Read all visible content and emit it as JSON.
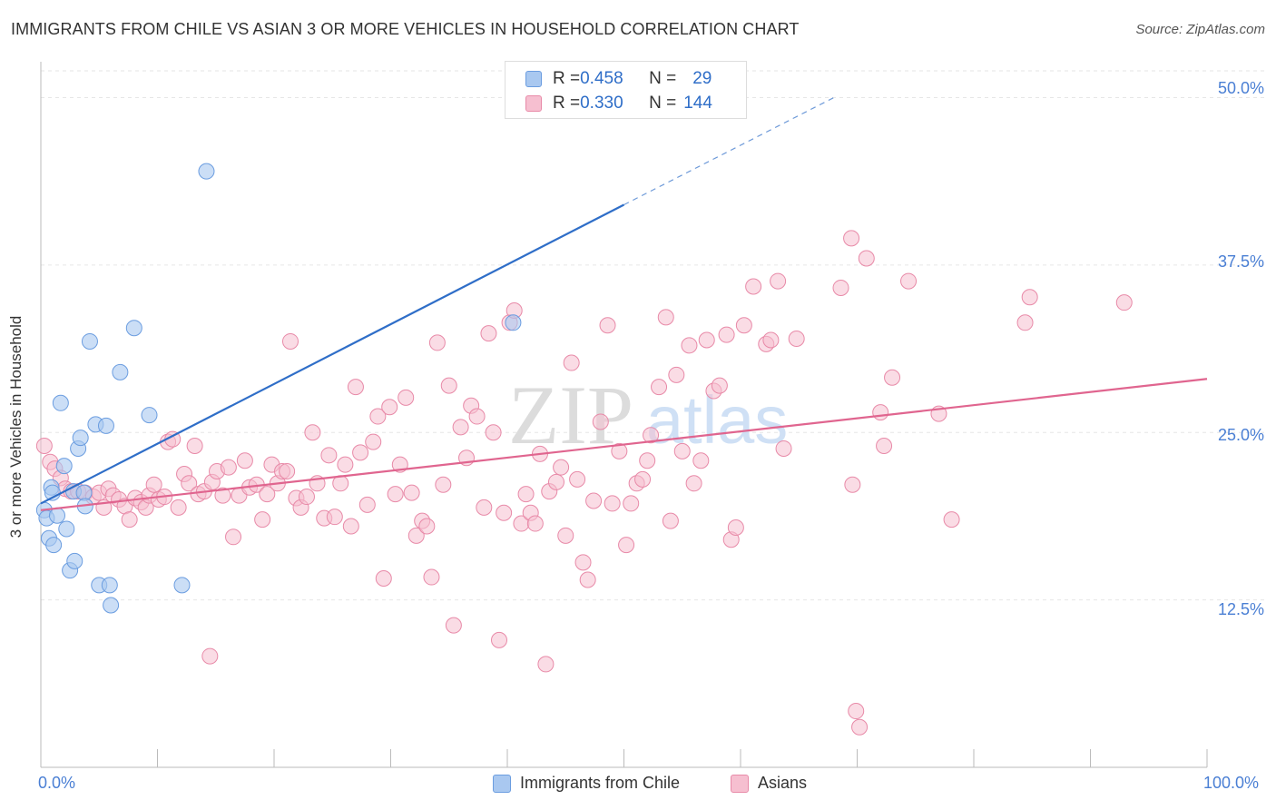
{
  "title": "IMMIGRANTS FROM CHILE VS ASIAN 3 OR MORE VEHICLES IN HOUSEHOLD CORRELATION CHART",
  "source": "Source: ZipAtlas.com",
  "colors": {
    "blue_fill": "#a9c8f0",
    "blue_stroke": "#6b9de0",
    "blue_line": "#2f6ec8",
    "pink_fill": "#f6bfd0",
    "pink_stroke": "#e88aa8",
    "pink_line": "#e0658f",
    "tick_text": "#4a7fd4",
    "grid": "#e6e6e6"
  },
  "legend": {
    "rows": [
      {
        "r_label": "R = ",
        "r_value": "0.458",
        "n_label": "N = ",
        "n_value": "29"
      },
      {
        "r_label": "R = ",
        "r_value": "0.330",
        "n_label": "N = ",
        "n_value": "144"
      }
    ]
  },
  "watermark": {
    "zip": "ZIP",
    "atlas": "atlas"
  },
  "chart_data": {
    "type": "scatter",
    "title": "IMMIGRANTS FROM CHILE VS ASIAN 3 OR MORE VEHICLES IN HOUSEHOLD CORRELATION CHART",
    "xlabel": "",
    "ylabel": "3 or more Vehicles in Household",
    "xlim": [
      0,
      100
    ],
    "ylim": [
      0,
      52
    ],
    "x_tick_labels": [
      "0.0%",
      "100.0%"
    ],
    "y_ticks": [
      12.5,
      25.0,
      37.5,
      50.0
    ],
    "y_tick_labels": [
      "12.5%",
      "25.0%",
      "37.5%",
      "50.0%"
    ],
    "grid": true,
    "series": [
      {
        "name": "Immigrants from Chile",
        "color": "#a9c8f0",
        "r": 0.458,
        "n": 29,
        "trend": {
          "x0": 0,
          "y0": 19.7,
          "x1": 50,
          "y1": 42.0,
          "dash_to_x": 68,
          "dash_to_y": 50.0
        },
        "points": [
          [
            0.3,
            19.2
          ],
          [
            0.5,
            18.6
          ],
          [
            0.7,
            17.1
          ],
          [
            0.9,
            20.9
          ],
          [
            1.1,
            16.6
          ],
          [
            1.4,
            18.8
          ],
          [
            1.7,
            27.2
          ],
          [
            2.0,
            22.5
          ],
          [
            2.2,
            17.8
          ],
          [
            2.5,
            14.7
          ],
          [
            2.8,
            20.6
          ],
          [
            2.9,
            15.4
          ],
          [
            3.2,
            23.8
          ],
          [
            3.4,
            24.6
          ],
          [
            3.7,
            20.5
          ],
          [
            3.8,
            19.5
          ],
          [
            4.2,
            31.8
          ],
          [
            4.7,
            25.6
          ],
          [
            5.0,
            13.6
          ],
          [
            5.6,
            25.5
          ],
          [
            5.9,
            13.6
          ],
          [
            6.0,
            12.1
          ],
          [
            6.8,
            29.5
          ],
          [
            8.0,
            32.8
          ],
          [
            9.3,
            26.3
          ],
          [
            12.1,
            13.6
          ],
          [
            14.2,
            44.5
          ],
          [
            40.5,
            33.2
          ],
          [
            1.0,
            20.5
          ]
        ]
      },
      {
        "name": "Asians",
        "color": "#f6bfd0",
        "r": 0.33,
        "n": 144,
        "trend": {
          "x0": 0,
          "y0": 19.2,
          "x1": 100,
          "y1": 29.0
        },
        "points": [
          [
            0.3,
            24.0
          ],
          [
            0.8,
            22.8
          ],
          [
            1.2,
            22.3
          ],
          [
            1.7,
            21.6
          ],
          [
            2.1,
            20.8
          ],
          [
            2.6,
            20.6
          ],
          [
            3.2,
            20.6
          ],
          [
            3.8,
            20.5
          ],
          [
            4.5,
            20.2
          ],
          [
            5.0,
            20.5
          ],
          [
            5.4,
            19.4
          ],
          [
            5.8,
            20.8
          ],
          [
            6.2,
            20.3
          ],
          [
            6.7,
            20.0
          ],
          [
            7.2,
            19.5
          ],
          [
            7.6,
            18.5
          ],
          [
            8.1,
            20.1
          ],
          [
            8.6,
            19.8
          ],
          [
            9.0,
            19.4
          ],
          [
            9.3,
            20.3
          ],
          [
            9.7,
            21.1
          ],
          [
            10.1,
            20.0
          ],
          [
            10.6,
            20.2
          ],
          [
            10.9,
            24.3
          ],
          [
            11.3,
            24.5
          ],
          [
            11.8,
            19.4
          ],
          [
            12.3,
            21.9
          ],
          [
            12.7,
            21.2
          ],
          [
            13.2,
            24.0
          ],
          [
            13.5,
            20.4
          ],
          [
            14.0,
            20.6
          ],
          [
            14.5,
            8.3
          ],
          [
            14.7,
            21.3
          ],
          [
            15.1,
            22.1
          ],
          [
            15.6,
            20.3
          ],
          [
            16.1,
            22.4
          ],
          [
            16.5,
            17.2
          ],
          [
            17.0,
            20.3
          ],
          [
            17.5,
            22.9
          ],
          [
            17.9,
            20.9
          ],
          [
            18.5,
            21.1
          ],
          [
            19.0,
            18.5
          ],
          [
            19.4,
            20.4
          ],
          [
            19.8,
            22.6
          ],
          [
            20.3,
            21.2
          ],
          [
            20.7,
            22.1
          ],
          [
            21.1,
            22.1
          ],
          [
            21.4,
            31.8
          ],
          [
            21.9,
            20.1
          ],
          [
            22.3,
            19.4
          ],
          [
            22.8,
            20.2
          ],
          [
            23.3,
            25.0
          ],
          [
            23.7,
            21.2
          ],
          [
            24.3,
            18.6
          ],
          [
            24.7,
            23.3
          ],
          [
            25.2,
            18.7
          ],
          [
            25.7,
            21.2
          ],
          [
            26.1,
            22.6
          ],
          [
            26.6,
            18.0
          ],
          [
            27.0,
            28.4
          ],
          [
            27.4,
            23.5
          ],
          [
            28.0,
            19.6
          ],
          [
            28.5,
            24.3
          ],
          [
            28.9,
            26.2
          ],
          [
            29.4,
            14.1
          ],
          [
            29.9,
            26.9
          ],
          [
            30.4,
            20.4
          ],
          [
            30.8,
            22.6
          ],
          [
            31.3,
            27.6
          ],
          [
            31.8,
            20.5
          ],
          [
            32.2,
            17.3
          ],
          [
            32.7,
            18.4
          ],
          [
            33.1,
            18.0
          ],
          [
            33.5,
            14.2
          ],
          [
            34.0,
            31.7
          ],
          [
            34.5,
            21.1
          ],
          [
            35.0,
            28.5
          ],
          [
            35.4,
            10.6
          ],
          [
            36.0,
            25.4
          ],
          [
            36.5,
            23.1
          ],
          [
            36.9,
            27.0
          ],
          [
            37.4,
            26.2
          ],
          [
            38.0,
            19.4
          ],
          [
            38.4,
            32.4
          ],
          [
            38.8,
            25.0
          ],
          [
            39.3,
            9.5
          ],
          [
            39.7,
            19.0
          ],
          [
            40.2,
            33.2
          ],
          [
            40.6,
            34.1
          ],
          [
            41.2,
            18.2
          ],
          [
            41.6,
            20.4
          ],
          [
            42.0,
            19.0
          ],
          [
            42.4,
            18.2
          ],
          [
            42.8,
            23.4
          ],
          [
            43.3,
            7.7
          ],
          [
            43.6,
            20.6
          ],
          [
            44.2,
            21.3
          ],
          [
            44.6,
            22.4
          ],
          [
            45.0,
            17.3
          ],
          [
            45.5,
            30.2
          ],
          [
            46.0,
            21.5
          ],
          [
            46.5,
            15.3
          ],
          [
            46.9,
            14.0
          ],
          [
            47.4,
            19.9
          ],
          [
            48.0,
            25.8
          ],
          [
            48.6,
            33.0
          ],
          [
            49.0,
            19.7
          ],
          [
            49.6,
            23.6
          ],
          [
            50.2,
            16.6
          ],
          [
            50.6,
            19.7
          ],
          [
            51.1,
            21.2
          ],
          [
            51.6,
            21.5
          ],
          [
            52.0,
            22.9
          ],
          [
            52.3,
            24.8
          ],
          [
            53.0,
            28.4
          ],
          [
            53.6,
            33.6
          ],
          [
            54.0,
            18.4
          ],
          [
            54.5,
            29.3
          ],
          [
            55.0,
            23.6
          ],
          [
            55.6,
            31.5
          ],
          [
            56.0,
            21.2
          ],
          [
            56.6,
            22.9
          ],
          [
            57.1,
            31.9
          ],
          [
            57.7,
            28.1
          ],
          [
            58.2,
            28.5
          ],
          [
            58.8,
            32.3
          ],
          [
            59.2,
            17.0
          ],
          [
            59.6,
            17.9
          ],
          [
            60.3,
            33.0
          ],
          [
            61.1,
            35.9
          ],
          [
            62.2,
            31.6
          ],
          [
            62.6,
            31.9
          ],
          [
            63.2,
            36.3
          ],
          [
            63.7,
            23.8
          ],
          [
            64.8,
            32.0
          ],
          [
            68.6,
            35.8
          ],
          [
            69.5,
            39.5
          ],
          [
            69.6,
            21.1
          ],
          [
            69.9,
            4.2
          ],
          [
            70.2,
            3.0
          ],
          [
            70.8,
            38.0
          ],
          [
            72.0,
            26.5
          ],
          [
            72.3,
            24.0
          ],
          [
            73.0,
            29.1
          ],
          [
            74.4,
            36.3
          ],
          [
            77.0,
            26.4
          ],
          [
            78.1,
            18.5
          ],
          [
            84.4,
            33.2
          ],
          [
            84.8,
            35.1
          ],
          [
            92.9,
            34.7
          ]
        ]
      }
    ],
    "legend_position": "top-center",
    "bottom_legend": [
      "Immigrants from Chile",
      "Asians"
    ]
  }
}
